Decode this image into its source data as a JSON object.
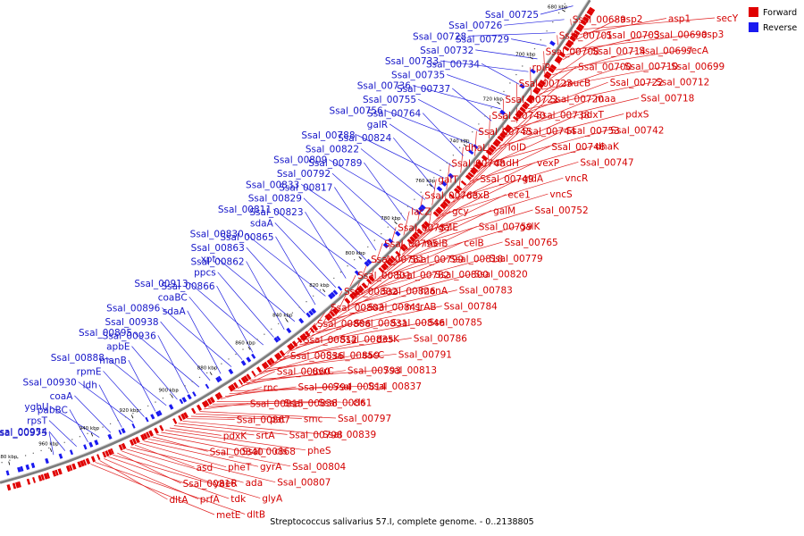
{
  "caption": "Streptococcus salivarius 57.I, complete genome. - 0..2138805",
  "legend": [
    {
      "label": "Forward",
      "color": "#e00000"
    },
    {
      "label": "Reverse",
      "color": "#1a1af0"
    }
  ],
  "colors": {
    "forward": "#e00000",
    "reverse": "#1a1af0",
    "backbone": "#7a7a7a",
    "forward_line": "#e02020",
    "reverse_line": "#2020e0"
  },
  "ticks": [
    "980 kbp",
    "960 kbp",
    "940 kbp",
    "920 kbp",
    "900 kbp",
    "880 kbp",
    "860 kbp",
    "840 kbp",
    "820 kbp",
    "800 kbp",
    "780 kbp",
    "760 kbp",
    "740 kbp",
    "720 kbp",
    "700 kbp",
    "680 kbp"
  ],
  "forward_labels": [
    "secY",
    "asp1",
    "asp2",
    "Ssal_00689",
    "asp3",
    "Ssal_00690",
    "Ssal_00703",
    "Ssal_00701",
    "secA",
    "Ssal_00697",
    "Ssal_00714",
    "Ssal_00708",
    "Ssal_00699",
    "Ssal_00710",
    "Ssal_00700",
    "rpiR",
    "Ssal_00712",
    "Ssal_00722",
    "mucB",
    "Ssal_00723",
    "Ssal_00718",
    "maa",
    "Ssal_00720",
    "Ssal_00721",
    "pdxS",
    "pdxT",
    "Ssal_00738",
    "Ssal_00740",
    "Ssal_00742",
    "Ssal_00753",
    "Ssal_00744",
    "Ssal_00745",
    "dhaK",
    "Ssal_00746",
    "lolD",
    "dhaL",
    "Ssal_00747",
    "vexP",
    "dhdH",
    "Ssal_00748",
    "vncR",
    "gldA",
    "Ssal_00749",
    "galT",
    "vncS",
    "ece1",
    "dexB",
    "Ssal_00763",
    "Ssal_00752",
    "galM",
    "gcy",
    "lacZ",
    "galK",
    "Ssal_00759",
    "galE",
    "Ssal_00787",
    "Ssal_00765",
    "celB",
    "melB",
    "Ssal_00795",
    "Ssal_00779",
    "Ssal_00818",
    "Ssal_00799",
    "Ssal_00781",
    "Ssal_00820",
    "Ssal_00800",
    "Ssal_00782",
    "Ssal_00801",
    "Ssal_00783",
    "manA",
    "Ssal_00826",
    "Ssal_00802",
    "Ssal_00784",
    "msrAB",
    "Ssal_00841",
    "Ssal_00803",
    "Ssal_00785",
    "Ssal_00846",
    "Ssal_00831",
    "Ssal_00806",
    "Ssal_00786",
    "desK",
    "Ssal_00835",
    "Ssal_00812",
    "Ssal_00791",
    "sacC",
    "Ssal_00859",
    "Ssal_00836",
    "Ssal_00813",
    "Ssal_00793",
    "uvrC",
    "Ssal_00860",
    "Ssal_00837",
    "Ssal_00814",
    "Ssal_00794",
    "rnc",
    "cls",
    "Ssal_00861",
    "Ssal_00838",
    "Ssal_00815",
    "Ssal_00797",
    "smc",
    "pat",
    "Ssal_00867",
    "Ssal_00839",
    "Ssal_00798",
    "srtA",
    "pdxK",
    "pheS",
    "cls",
    "Ssal_00868",
    "Ssal_00840",
    "Ssal_00804",
    "gyrA",
    "pheT",
    "asd",
    "Ssal_00807",
    "ada",
    "yaeR",
    "Ssal_00816",
    "glyA",
    "tdk",
    "prfA",
    "dltA",
    "dltB",
    "metE"
  ],
  "reverse_labels": [
    "Ssal_00725",
    "Ssal_00726",
    "Ssal_00728",
    "Ssal_00729",
    "Ssal_00732",
    "Ssal_00733",
    "Ssal_00734",
    "Ssal_00735",
    "Ssal_00736",
    "Ssal_00737",
    "Ssal_00755",
    "Ssal_00756",
    "Ssal_00764",
    "galR",
    "Ssal_00788",
    "Ssal_00824",
    "Ssal_00822",
    "Ssal_00809",
    "Ssal_00789",
    "Ssal_00792",
    "Ssal_00833",
    "Ssal_00817",
    "Ssal_00829",
    "Ssal_00811",
    "Ssal_00823",
    "sdaA",
    "Ssal_00830",
    "Ssal_00865",
    "Ssal_00863",
    "xpt",
    "Ssal_00862",
    "ppcs",
    "Ssal_00913",
    "Ssal_00866",
    "coaBC",
    "Ssal_00896",
    "sdaA",
    "Ssal_00938",
    "Ssal_00895",
    "Ssal_00936",
    "apbE",
    "Ssal_00888",
    "manB",
    "rpmE",
    "Ssal_00930",
    "ldh",
    "coaA",
    "yghU",
    "pabBC",
    "rpsT",
    "Ssal_00954",
    "Ssal_00975"
  ]
}
